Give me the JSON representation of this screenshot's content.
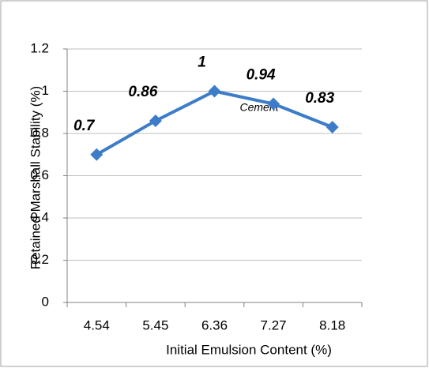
{
  "chart_data": {
    "type": "line",
    "x_label": "Initial Emulsion Content (%)",
    "y_label": "Retained Marshall Stability (%)",
    "annotation": "Cement",
    "categories": [
      "4.54",
      "5.45",
      "6.36",
      "7.27",
      "8.18"
    ],
    "series": [
      {
        "name": "Cement",
        "color": "#3d7cc9",
        "values": [
          0.7,
          0.86,
          1,
          0.94,
          0.83
        ]
      }
    ],
    "ylim": [
      0,
      1.2
    ],
    "yticks": [
      0,
      0.2,
      0.4,
      0.6,
      0.8,
      1,
      1.2
    ],
    "grid": true
  }
}
